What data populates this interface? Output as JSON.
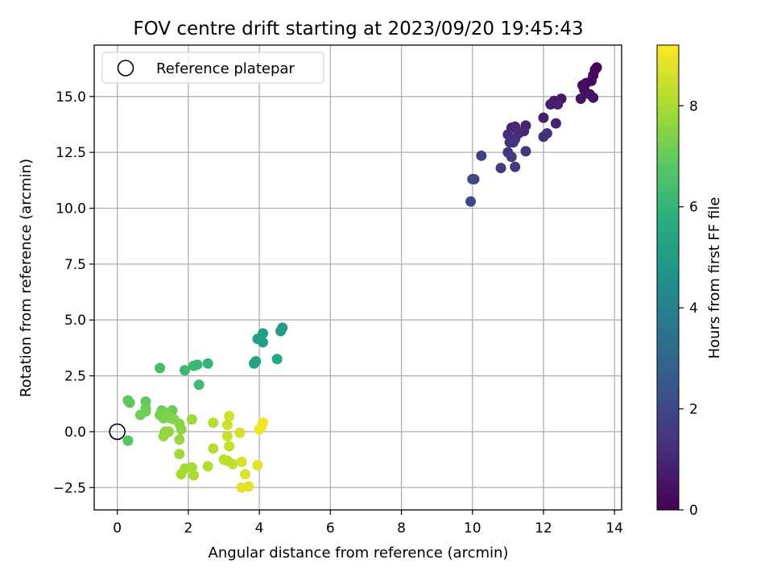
{
  "chart_data": {
    "type": "scatter",
    "title": "FOV centre drift starting at 2023/09/20 19:45:43",
    "xlabel": "Angular distance from reference (arcmin)",
    "ylabel": "Rotation from reference (arcmin)",
    "xlim": [
      -0.65,
      14.2
    ],
    "ylim": [
      -3.5,
      17.3
    ],
    "xticks": [
      "0",
      "2",
      "4",
      "6",
      "8",
      "10",
      "12",
      "14"
    ],
    "yticks": [
      "−2.5",
      "0.0",
      "2.5",
      "5.0",
      "7.5",
      "10.0",
      "12.5",
      "15.0"
    ],
    "grid": true,
    "legend": {
      "placement": "upper-left",
      "label": "Reference platepar"
    },
    "reference_point": {
      "x": 0,
      "y": 0
    },
    "colorbar": {
      "label": "Hours from first FF file",
      "ticks": [
        "0",
        "2",
        "4",
        "6",
        "8"
      ],
      "range": [
        0,
        9.2
      ],
      "colormap": "viridis"
    },
    "points": [
      {
        "x": 13.5,
        "y": 16.3,
        "t": 0.1
      },
      {
        "x": 13.45,
        "y": 16.2,
        "t": 0.15
      },
      {
        "x": 13.4,
        "y": 15.95,
        "t": 0.2
      },
      {
        "x": 13.35,
        "y": 15.7,
        "t": 0.25
      },
      {
        "x": 13.2,
        "y": 15.6,
        "t": 0.3
      },
      {
        "x": 13.1,
        "y": 15.5,
        "t": 0.35
      },
      {
        "x": 13.15,
        "y": 15.3,
        "t": 0.4
      },
      {
        "x": 13.3,
        "y": 15.1,
        "t": 0.45
      },
      {
        "x": 13.05,
        "y": 14.9,
        "t": 0.5
      },
      {
        "x": 13.4,
        "y": 14.95,
        "t": 0.55
      },
      {
        "x": 12.5,
        "y": 14.9,
        "t": 0.6
      },
      {
        "x": 12.3,
        "y": 14.8,
        "t": 0.65
      },
      {
        "x": 12.2,
        "y": 14.65,
        "t": 0.7
      },
      {
        "x": 12.4,
        "y": 14.65,
        "t": 0.75
      },
      {
        "x": 12.0,
        "y": 14.05,
        "t": 0.8
      },
      {
        "x": 12.35,
        "y": 13.8,
        "t": 0.85
      },
      {
        "x": 11.5,
        "y": 13.7,
        "t": 0.9
      },
      {
        "x": 11.2,
        "y": 13.65,
        "t": 0.95
      },
      {
        "x": 11.1,
        "y": 13.6,
        "t": 1.0
      },
      {
        "x": 11.45,
        "y": 13.45,
        "t": 1.05
      },
      {
        "x": 11.3,
        "y": 13.35,
        "t": 1.1
      },
      {
        "x": 11.0,
        "y": 13.3,
        "t": 1.15
      },
      {
        "x": 12.1,
        "y": 13.35,
        "t": 1.2
      },
      {
        "x": 12.0,
        "y": 13.2,
        "t": 1.25
      },
      {
        "x": 11.2,
        "y": 13.1,
        "t": 1.3
      },
      {
        "x": 11.05,
        "y": 12.95,
        "t": 1.35
      },
      {
        "x": 11.15,
        "y": 12.95,
        "t": 1.4
      },
      {
        "x": 11.5,
        "y": 12.55,
        "t": 1.45
      },
      {
        "x": 11.0,
        "y": 12.5,
        "t": 1.5
      },
      {
        "x": 11.1,
        "y": 12.3,
        "t": 1.55
      },
      {
        "x": 10.8,
        "y": 11.8,
        "t": 1.6
      },
      {
        "x": 11.2,
        "y": 11.85,
        "t": 1.65
      },
      {
        "x": 10.25,
        "y": 12.35,
        "t": 1.75
      },
      {
        "x": 10.05,
        "y": 11.3,
        "t": 1.9
      },
      {
        "x": 10.0,
        "y": 11.3,
        "t": 1.95
      },
      {
        "x": 9.95,
        "y": 10.3,
        "t": 2.05
      },
      {
        "x": 4.65,
        "y": 4.65,
        "t": 5.0
      },
      {
        "x": 4.6,
        "y": 4.5,
        "t": 5.05
      },
      {
        "x": 4.1,
        "y": 4.4,
        "t": 5.1
      },
      {
        "x": 3.95,
        "y": 4.15,
        "t": 5.15
      },
      {
        "x": 4.1,
        "y": 4.0,
        "t": 5.2
      },
      {
        "x": 3.9,
        "y": 3.15,
        "t": 5.25
      },
      {
        "x": 3.85,
        "y": 3.05,
        "t": 5.3
      },
      {
        "x": 4.5,
        "y": 3.25,
        "t": 5.35
      },
      {
        "x": 2.55,
        "y": 3.05,
        "t": 6.0
      },
      {
        "x": 2.25,
        "y": 3.0,
        "t": 6.1
      },
      {
        "x": 2.15,
        "y": 2.95,
        "t": 6.15
      },
      {
        "x": 1.9,
        "y": 2.75,
        "t": 6.2
      },
      {
        "x": 2.3,
        "y": 2.1,
        "t": 6.3
      },
      {
        "x": 1.2,
        "y": 2.85,
        "t": 6.35
      },
      {
        "x": 0.3,
        "y": 1.4,
        "t": 6.8
      },
      {
        "x": 0.35,
        "y": 1.3,
        "t": 6.85
      },
      {
        "x": 0.8,
        "y": 1.35,
        "t": 6.9
      },
      {
        "x": 0.8,
        "y": 1.05,
        "t": 7.0
      },
      {
        "x": 1.55,
        "y": 0.95,
        "t": 7.05
      },
      {
        "x": 1.25,
        "y": 0.95,
        "t": 7.1
      },
      {
        "x": 0.8,
        "y": 0.9,
        "t": 7.15
      },
      {
        "x": 0.65,
        "y": 0.75,
        "t": 7.2
      },
      {
        "x": 1.2,
        "y": 0.75,
        "t": 7.25
      },
      {
        "x": 1.3,
        "y": 0.6,
        "t": 7.3
      },
      {
        "x": 1.4,
        "y": 0.85,
        "t": 7.35
      },
      {
        "x": 1.5,
        "y": 0.6,
        "t": 7.4
      },
      {
        "x": 1.6,
        "y": 0.55,
        "t": 7.45
      },
      {
        "x": 1.75,
        "y": 0.35,
        "t": 7.5
      },
      {
        "x": 1.8,
        "y": 0.1,
        "t": 7.55
      },
      {
        "x": 1.35,
        "y": 0.0,
        "t": 7.6
      },
      {
        "x": 1.45,
        "y": 0.0,
        "t": 7.65
      },
      {
        "x": 1.3,
        "y": -0.2,
        "t": 7.7
      },
      {
        "x": 1.75,
        "y": -0.35,
        "t": 7.75
      },
      {
        "x": 0.3,
        "y": -0.4,
        "t": 6.7
      },
      {
        "x": 2.1,
        "y": 0.55,
        "t": 7.8
      },
      {
        "x": 1.75,
        "y": -1.0,
        "t": 7.85
      },
      {
        "x": 1.9,
        "y": -1.65,
        "t": 7.9
      },
      {
        "x": 2.1,
        "y": -1.6,
        "t": 7.95
      },
      {
        "x": 1.8,
        "y": -1.9,
        "t": 8.0
      },
      {
        "x": 2.15,
        "y": -1.95,
        "t": 8.05
      },
      {
        "x": 2.55,
        "y": -1.55,
        "t": 8.1
      },
      {
        "x": 2.7,
        "y": -0.75,
        "t": 8.15
      },
      {
        "x": 2.7,
        "y": 0.4,
        "t": 8.2
      },
      {
        "x": 3.0,
        "y": -1.25,
        "t": 8.25
      },
      {
        "x": 3.1,
        "y": -1.3,
        "t": 8.3
      },
      {
        "x": 3.25,
        "y": -1.45,
        "t": 8.35
      },
      {
        "x": 3.15,
        "y": -0.65,
        "t": 8.4
      },
      {
        "x": 3.1,
        "y": -0.2,
        "t": 8.45
      },
      {
        "x": 3.1,
        "y": 0.3,
        "t": 8.5
      },
      {
        "x": 3.15,
        "y": 0.7,
        "t": 8.55
      },
      {
        "x": 3.45,
        "y": -0.05,
        "t": 8.6
      },
      {
        "x": 3.5,
        "y": -1.35,
        "t": 8.65
      },
      {
        "x": 3.6,
        "y": -1.9,
        "t": 8.7
      },
      {
        "x": 3.95,
        "y": -1.5,
        "t": 8.75
      },
      {
        "x": 3.7,
        "y": -2.45,
        "t": 8.8
      },
      {
        "x": 3.5,
        "y": -2.5,
        "t": 8.85
      },
      {
        "x": 4.0,
        "y": 0.1,
        "t": 8.95
      },
      {
        "x": 4.05,
        "y": 0.2,
        "t": 9.0
      },
      {
        "x": 4.1,
        "y": 0.4,
        "t": 9.05
      }
    ]
  }
}
